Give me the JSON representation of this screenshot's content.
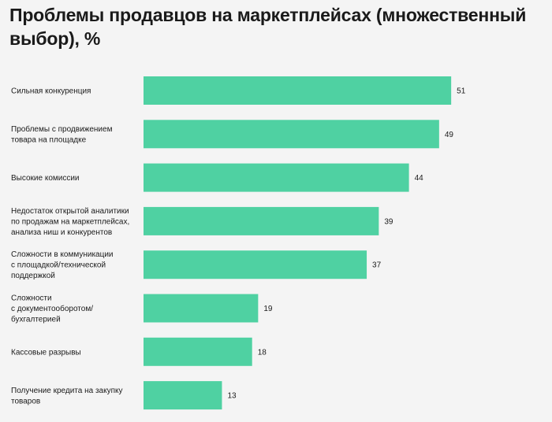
{
  "title": "Проблемы продавцов на маркетплейсах (множественный выбор), %",
  "colors": {
    "bar": "#4fd1a2",
    "background": "#f4f4f4"
  },
  "chart_data": {
    "type": "bar",
    "orientation": "horizontal",
    "title": "Проблемы продавцов на маркетплейсах (множественный выбор), %",
    "categories": [
      [
        "Сильная конкуренция"
      ],
      [
        "Проблемы с продвижением",
        "товара на площадке"
      ],
      [
        "Высокие комиссии"
      ],
      [
        "Недостаток открытой аналитики",
        "по продажам на маркетплейсах,",
        "анализа ниш и конкурентов"
      ],
      [
        "Сложности в коммуникации",
        "с площадкой/технической",
        "поддержкой"
      ],
      [
        "Сложности",
        "с документооборотом/",
        "бухгалтерией"
      ],
      [
        "Кассовые разрывы"
      ],
      [
        "Получение кредита на закупку",
        "товаров"
      ]
    ],
    "values": [
      51,
      49,
      44,
      39,
      37,
      19,
      18,
      13
    ],
    "grid": false,
    "legend": "none"
  }
}
